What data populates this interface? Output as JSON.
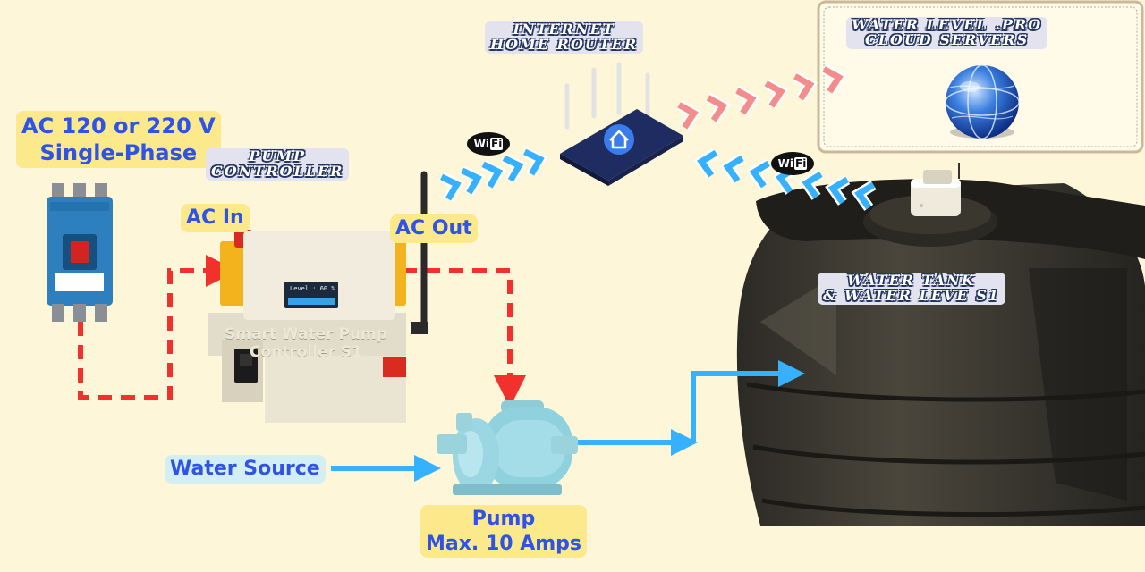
{
  "labels": {
    "power_supply": {
      "line1": "AC 120 or 220 V",
      "line2": "Single-Phase"
    },
    "ac_in": "AC In",
    "ac_out": "AC Out",
    "pump_controller": {
      "line1": "PUMP",
      "line2": "CONTROLLER"
    },
    "router": {
      "line1": "INTERNET",
      "line2": "HOME ROUTER"
    },
    "cloud": {
      "line1": "WATER LEVEL .PRO",
      "line2": "CLOUD SERVERS"
    },
    "tank": {
      "line1": "WATER TANK",
      "line2": "& WATER LEVE S1"
    },
    "water_source": "Water Source",
    "pump": {
      "line1": "Pump",
      "line2": "Max. 10 Amps"
    }
  },
  "controller_device": {
    "line1": "Smart Water Pump",
    "line2": "Controller S1",
    "display": "Level : 60 %"
  },
  "wifi_badge": {
    "wi": "Wi",
    "fi": "Fi"
  },
  "colors": {
    "background": "#fdf6d8",
    "power_line": "#f2312d",
    "water_line": "#36b1ff",
    "uplink": "#f48c8c",
    "downlink": "#36b1ff",
    "label_text": "#2f53e6"
  }
}
